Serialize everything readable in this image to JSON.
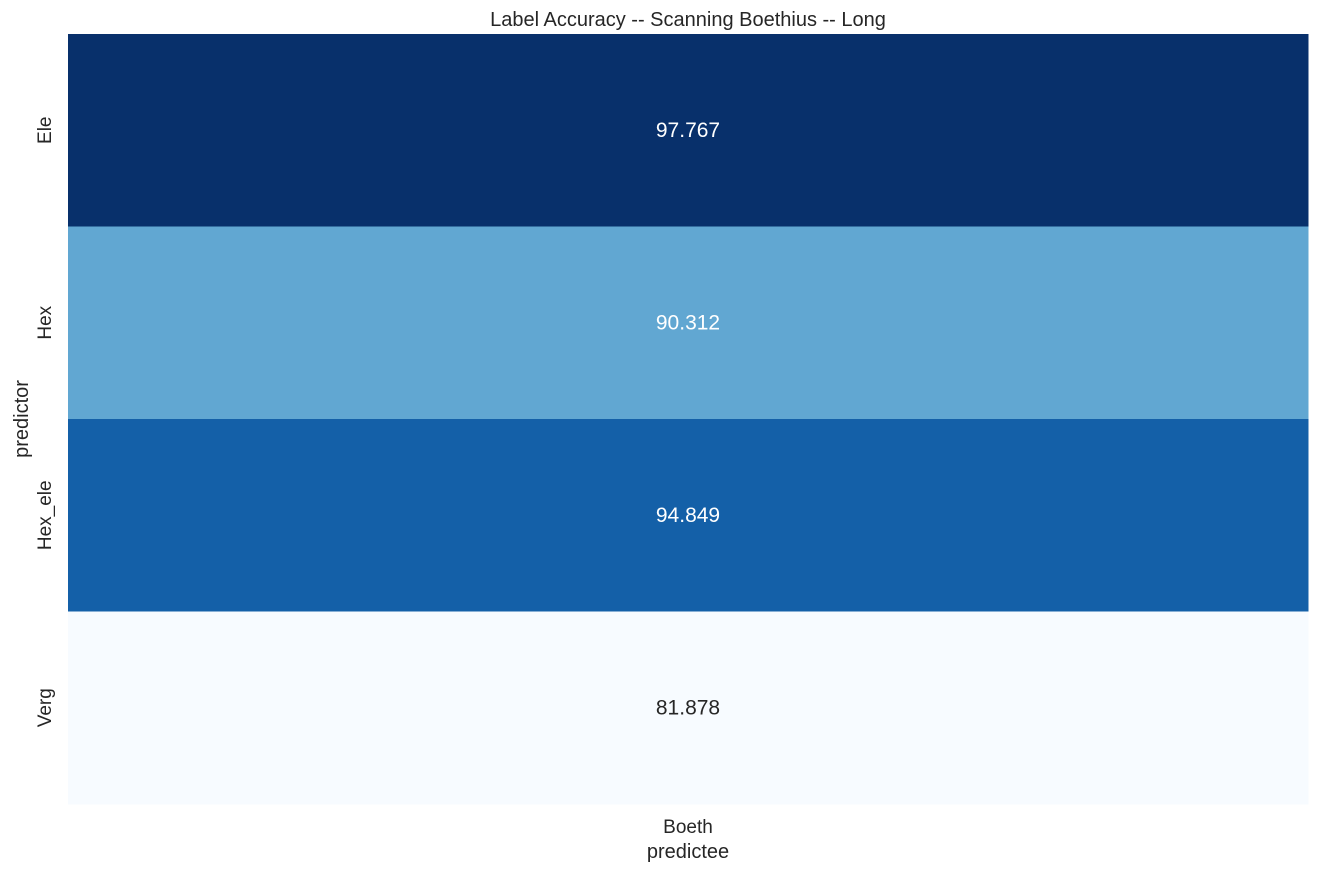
{
  "chart_data": {
    "type": "heatmap",
    "title": "Label Accuracy -- Scanning Boethius -- Long",
    "xlabel": "predictee",
    "ylabel": "predictor",
    "x_categories": [
      "Boeth"
    ],
    "y_categories": [
      "Ele",
      "Hex",
      "Hex_ele",
      "Verg"
    ],
    "values": [
      [
        97.767
      ],
      [
        90.312
      ],
      [
        94.849
      ],
      [
        81.878
      ]
    ],
    "value_labels": [
      [
        "97.767"
      ],
      [
        "90.312"
      ],
      [
        "94.849"
      ],
      [
        "81.878"
      ]
    ],
    "colormap": "Blues",
    "colorbar": false,
    "grid": false,
    "colors": {
      "low": "#f7fbff",
      "high": "#08306b",
      "annotation_light": "#ffffff",
      "annotation_dark": "#262626"
    }
  }
}
